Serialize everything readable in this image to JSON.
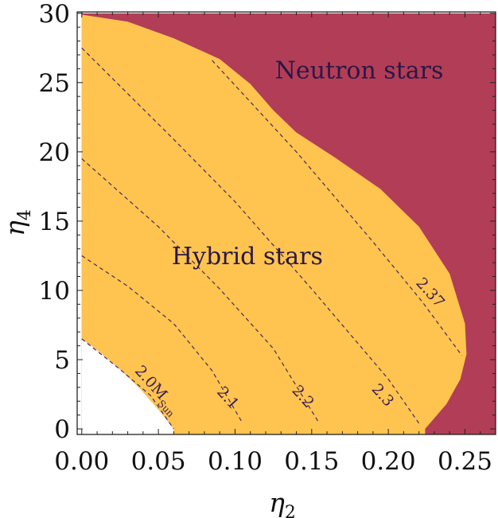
{
  "chart_data": {
    "type": "contour",
    "xlabel": "η",
    "xlabel_sub": "2",
    "ylabel": "η",
    "ylabel_sub": "4",
    "xlim": [
      -0.003,
      0.27
    ],
    "ylim": [
      -0.4,
      30.1
    ],
    "x_ticks": [
      "0.00",
      "0.05",
      "0.10",
      "0.15",
      "0.20",
      "0.25"
    ],
    "x_tick_values": [
      0.0,
      0.05,
      0.1,
      0.15,
      0.2,
      0.25
    ],
    "y_ticks": [
      "0",
      "5",
      "10",
      "15",
      "20",
      "25",
      "30"
    ],
    "y_tick_values": [
      0,
      5,
      10,
      15,
      20,
      25,
      30
    ],
    "regions": [
      {
        "name": "Neutron stars",
        "color": "#b23d57",
        "label_at": [
          0.181,
          25.3
        ]
      },
      {
        "name": "Hybrid stars",
        "color": "#fec44f",
        "label_at": [
          0.108,
          11.9
        ],
        "boundary_upper": [
          [
            0.0,
            29.9
          ],
          [
            0.03,
            29.4
          ],
          [
            0.06,
            28.2
          ],
          [
            0.09,
            26.7
          ],
          [
            0.11,
            24.9
          ],
          [
            0.125,
            23.0
          ],
          [
            0.14,
            21.4
          ],
          [
            0.165,
            19.6
          ],
          [
            0.195,
            17.3
          ],
          [
            0.22,
            14.6
          ],
          [
            0.24,
            11.2
          ],
          [
            0.25,
            7.6
          ],
          [
            0.251,
            5.4
          ],
          [
            0.247,
            3.6
          ],
          [
            0.238,
            1.8
          ],
          [
            0.224,
            0.0
          ]
        ],
        "boundary_lower": [
          [
            0.06,
            0.0
          ],
          [
            0.05,
            1.4
          ],
          [
            0.038,
            2.9
          ],
          [
            0.025,
            4.3
          ],
          [
            0.01,
            5.7
          ],
          [
            0.0,
            6.5
          ]
        ]
      }
    ],
    "contours": [
      {
        "label": "2.0M",
        "label_sub": "Sun",
        "label_at": [
          0.047,
          2.6
        ],
        "points": [
          [
            0.0,
            6.5
          ],
          [
            0.025,
            4.3
          ],
          [
            0.045,
            2.4
          ],
          [
            0.06,
            0.0
          ]
        ]
      },
      {
        "label": "2.1",
        "label_at": [
          0.093,
          2.0
        ],
        "points": [
          [
            0.0,
            12.5
          ],
          [
            0.03,
            10.3
          ],
          [
            0.06,
            7.6
          ],
          [
            0.085,
            4.2
          ],
          [
            0.105,
            0.4
          ]
        ]
      },
      {
        "label": "2.2",
        "label_at": [
          0.142,
          2.1
        ],
        "points": [
          [
            0.0,
            19.5
          ],
          [
            0.05,
            14.6
          ],
          [
            0.09,
            10.1
          ],
          [
            0.125,
            5.8
          ],
          [
            0.155,
            0.4
          ]
        ]
      },
      {
        "label": "2.3",
        "label_at": [
          0.194,
          2.2
        ],
        "points": [
          [
            0.0,
            27.5
          ],
          [
            0.06,
            20.9
          ],
          [
            0.1,
            16.4
          ],
          [
            0.15,
            10.1
          ],
          [
            0.2,
            3.6
          ],
          [
            0.22,
            0.4
          ]
        ]
      },
      {
        "label": "2.37",
        "label_at": [
          0.225,
          9.6
        ],
        "points": [
          [
            0.085,
            26.6
          ],
          [
            0.14,
            20.0
          ],
          [
            0.19,
            13.5
          ],
          [
            0.222,
            9.2
          ],
          [
            0.248,
            5.3
          ]
        ]
      }
    ]
  }
}
